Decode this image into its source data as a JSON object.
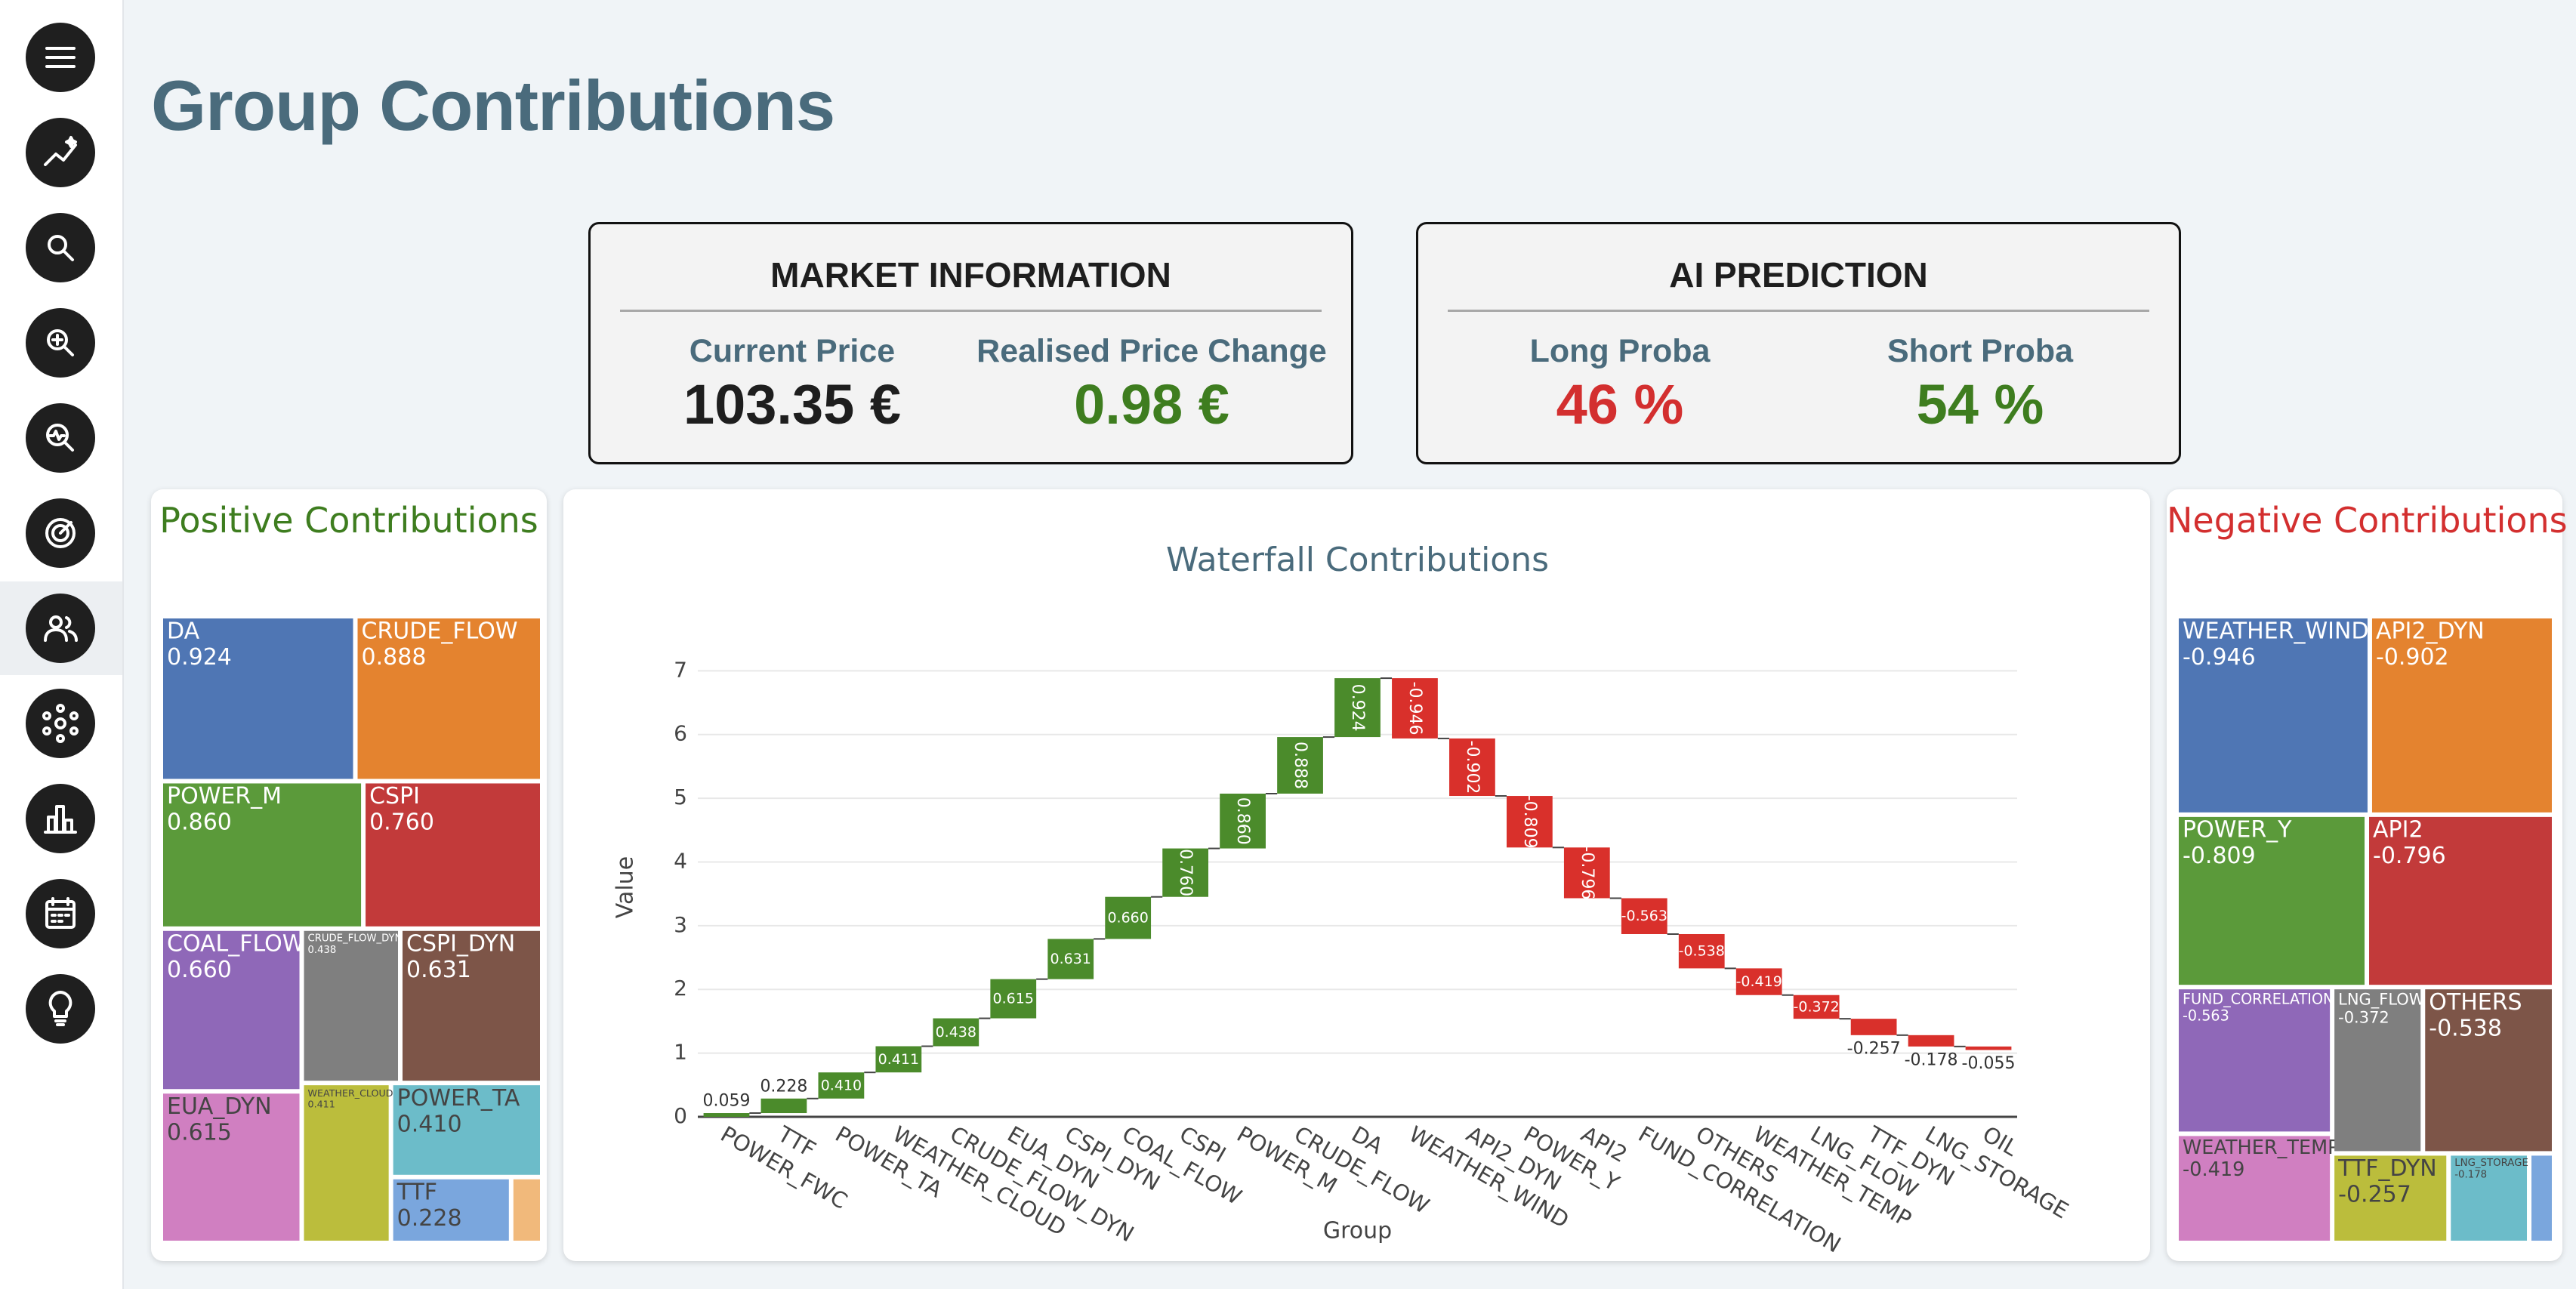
{
  "header": {
    "title": "Group Contributions"
  },
  "market_information": {
    "title": "MARKET INFORMATION",
    "items": [
      {
        "label": "Current Price",
        "value": "103.35 €"
      },
      {
        "label": "Realised Price Change",
        "value": "0.98 €"
      }
    ]
  },
  "ai_prediction": {
    "title": "AI PREDICTION",
    "items": [
      {
        "label": "Long Proba",
        "value": "46 %"
      },
      {
        "label": "Short Proba",
        "value": "54 %"
      }
    ]
  },
  "chart_data": [
    {
      "type": "treemap",
      "title": "Positive Contributions",
      "categories": [
        "DA",
        "CRUDE_FLOW",
        "POWER_M",
        "CSPI",
        "COAL_FLOW",
        "EUA_DYN",
        "CRUDE_FLOW_DYN",
        "CSPI_DYN",
        "WEATHER_CLOUD",
        "POWER_TA",
        "TTF",
        null
      ],
      "values": [
        0.924,
        0.888,
        0.86,
        0.76,
        0.66,
        0.615,
        0.438,
        0.631,
        0.411,
        0.41,
        0.228,
        0.059
      ],
      "value_labels": [
        "0.924",
        "0.888",
        "0.860",
        "0.760",
        "0.660",
        "0.615",
        "0.438",
        "0.631",
        "0.411",
        "0.410",
        "0.228",
        null
      ],
      "colors": [
        "#4f76b4",
        "#e4832f",
        "#5b9a3a",
        "#c23a3a",
        "#8f68b8",
        "#d07fc1",
        "#7f7f7f",
        "#7d5548",
        "#bbbd3c",
        "#6cbcc9",
        "#7aa6dd",
        "#f1b97b"
      ]
    },
    {
      "type": "waterfall",
      "title": "Waterfall Contributions",
      "x_label": "Group",
      "y_label": "Value",
      "categories": [
        "POWER_FWC",
        "TTF",
        "POWER_TA",
        "WEATHER_CLOUD",
        "CRUDE_FLOW_DYN",
        "EUA_DYN",
        "CSPI_DYN",
        "COAL_FLOW",
        "CSPI",
        "POWER_M",
        "CRUDE_FLOW",
        "DA",
        "WEATHER_WIND",
        "API2_DYN",
        "POWER_Y",
        "API2",
        "FUND_CORRELATION",
        "OTHERS",
        "WEATHER_TEMP",
        "LNG_FLOW",
        "TTF_DYN",
        "LNG_STORAGE",
        "OIL"
      ],
      "values": [
        0.059,
        0.228,
        0.41,
        0.411,
        0.438,
        0.615,
        0.631,
        0.66,
        0.76,
        0.86,
        0.888,
        0.924,
        -0.946,
        -0.902,
        -0.809,
        -0.796,
        -0.563,
        -0.538,
        -0.419,
        -0.372,
        -0.257,
        -0.178,
        -0.055
      ],
      "value_labels": [
        "0.059",
        "0.228",
        "0.410",
        "0.411",
        "0.438",
        "0.615",
        "0.631",
        "0.660",
        "0.760",
        "0.860",
        "0.888",
        "0.924",
        "-0.946",
        "-0.902",
        "-0.809",
        "-0.796",
        "-0.563",
        "-0.538",
        "-0.419",
        "-0.372",
        "-0.257",
        "-0.178",
        "-0.055"
      ],
      "increasing_color": "#4b8b2b",
      "decreasing_color": "#d9302b",
      "ylim": [
        0,
        7.3
      ],
      "yticks": [
        0,
        1,
        2,
        3,
        4,
        5,
        6,
        7
      ],
      "grid": true
    },
    {
      "type": "treemap",
      "title": "Negative Contributions",
      "categories": [
        "WEATHER_WIND",
        "API2_DYN",
        "POWER_Y",
        "API2",
        "FUND_CORRELATION",
        "WEATHER_TEMP",
        "LNG_FLOW",
        "OTHERS",
        "TTF_DYN",
        "LNG_STORAGE",
        null
      ],
      "values": [
        -0.946,
        -0.902,
        -0.809,
        -0.796,
        -0.563,
        -0.419,
        -0.372,
        -0.538,
        -0.257,
        -0.178,
        -0.055
      ],
      "value_labels": [
        "-0.946",
        "-0.902",
        "-0.809",
        "-0.796",
        "-0.563",
        "-0.419",
        "-0.372",
        "-0.538",
        "-0.257",
        "-0.178",
        null
      ],
      "colors": [
        "#4f76b4",
        "#e4832f",
        "#5b9a3a",
        "#c23a3a",
        "#8f68b8",
        "#d07fc1",
        "#7f7f7f",
        "#7d5548",
        "#bbbd3c",
        "#6cbcc9",
        "#7aa6dd"
      ]
    }
  ]
}
